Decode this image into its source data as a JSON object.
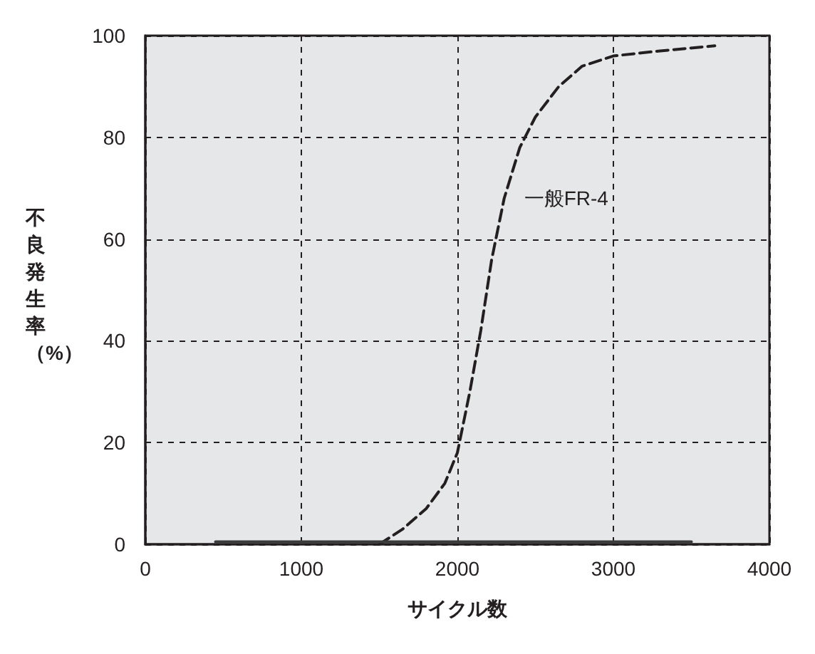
{
  "chart_data": {
    "type": "line",
    "xlabel": "サイクル数",
    "ylabel": "不良発生率（%）",
    "xlim": [
      0,
      4000
    ],
    "xticks": [
      0,
      1000,
      2000,
      3000,
      4000
    ],
    "ylim": [
      0,
      100
    ],
    "yticks": [
      0,
      20,
      40,
      60,
      80,
      100
    ],
    "grid": true,
    "legend": false,
    "marker": "none",
    "series": [
      {
        "name": "一般FR-4",
        "color": "#231f20",
        "line_style": "dashed",
        "x": [
          1500,
          1650,
          1800,
          1920,
          2000,
          2080,
          2150,
          2220,
          2300,
          2400,
          2500,
          2650,
          2800,
          3000,
          3300,
          3650
        ],
        "values": [
          0,
          3,
          7,
          12,
          18,
          30,
          42,
          56,
          68,
          78,
          84,
          90,
          94,
          96,
          97,
          98
        ]
      },
      {
        "color": "#3a3a3a",
        "line_style": "solid",
        "x": [
          450,
          3500
        ],
        "values": [
          0.5,
          0.5
        ]
      }
    ]
  }
}
